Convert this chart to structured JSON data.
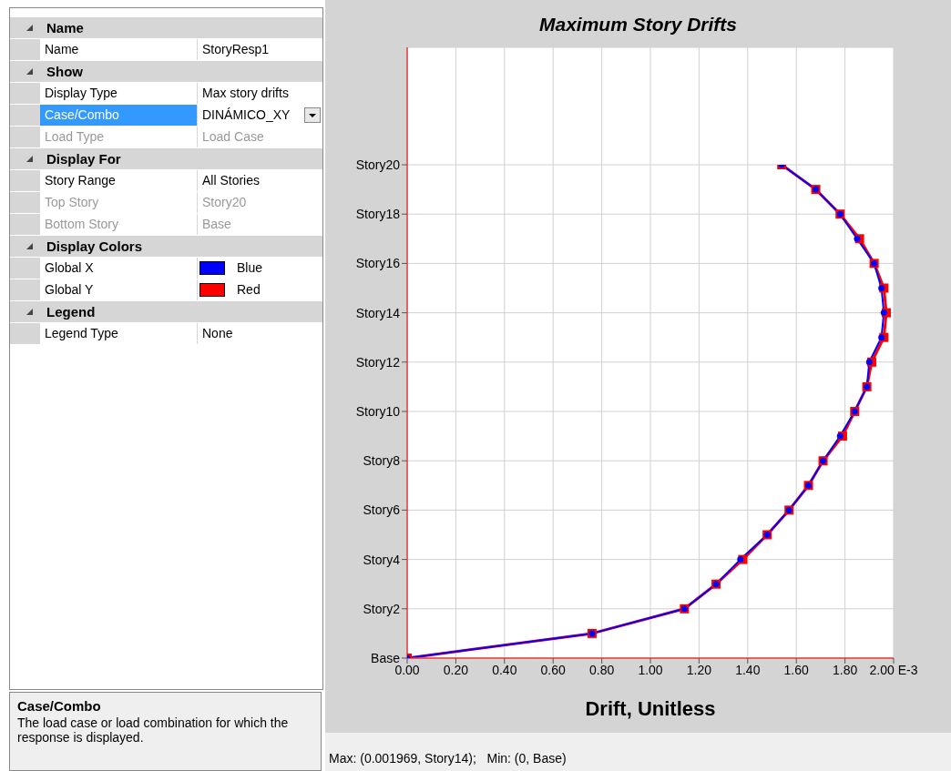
{
  "chart_data": [
    {
      "type": "other",
      "annotations": [
        "Name",
        "Name",
        "StoryResp1",
        "Show",
        "Display Type",
        "Max story drifts",
        "Case/Combo",
        "DINÁMICO_XY",
        "Load Type",
        "Load Case",
        "Display For",
        "Story Range",
        "All Stories",
        "Top Story",
        "Story20",
        "Bottom Story",
        "Base",
        "Display Colors",
        "Global X",
        "Blue",
        "Global Y",
        "Red",
        "Legend",
        "Legend Type",
        "None",
        "Case/Combo",
        "The load case or load combination for which the response is displayed."
      ]
    },
    {
      "type": "line",
      "orientation": "horizontal",
      "title": "Maximum Story Drifts",
      "xlabel": "Drift, Unitless",
      "categories": [
        "Story20",
        null,
        "Story18",
        null,
        "Story16",
        null,
        "Story14",
        null,
        "Story12",
        null,
        "Story10",
        null,
        "Story8",
        null,
        "Story6",
        null,
        "Story4",
        null,
        "Story2",
        null,
        "Base"
      ],
      "series": [
        {
          "color": "#0000ff",
          "marker": "circle",
          "values": [
            1.54,
            1.68,
            1.78,
            1.85,
            1.92,
            1.95,
            1.96,
            1.95,
            1.9,
            1.89,
            1.84,
            1.78,
            1.71,
            1.65,
            1.57,
            1.48,
            1.37,
            1.27,
            1.14,
            0.76,
            0
          ]
        },
        {
          "color": "#ff0000",
          "marker": "square",
          "values": [
            1.54,
            1.68,
            1.78,
            1.86,
            1.92,
            1.96,
            1.97,
            1.96,
            1.91,
            1.89,
            1.84,
            1.79,
            1.71,
            1.65,
            1.57,
            1.48,
            1.38,
            1.27,
            1.14,
            0.76,
            0
          ]
        }
      ],
      "xlim": [
        0,
        2
      ],
      "xticks": [
        {
          "value": 0,
          "label": "0.00"
        },
        {
          "value": 0.2,
          "label": "0.20"
        },
        {
          "value": 0.4,
          "label": "0.40"
        },
        {
          "value": 0.6,
          "label": "0.60"
        },
        {
          "value": 0.8,
          "label": "0.80"
        },
        {
          "value": 1,
          "label": "1.00"
        },
        {
          "value": 1.2,
          "label": "1.20"
        },
        {
          "value": 1.4,
          "label": "1.40"
        },
        {
          "value": 1.6,
          "label": "1.60"
        },
        {
          "value": 1.8,
          "label": "1.80"
        },
        {
          "value": 2,
          "label": "2.00 E-3"
        }
      ],
      "grid": true,
      "line_style": "solid",
      "annotations": [
        "Max: (0.001969, Story14);   Min: (0, Base)"
      ]
    }
  ]
}
